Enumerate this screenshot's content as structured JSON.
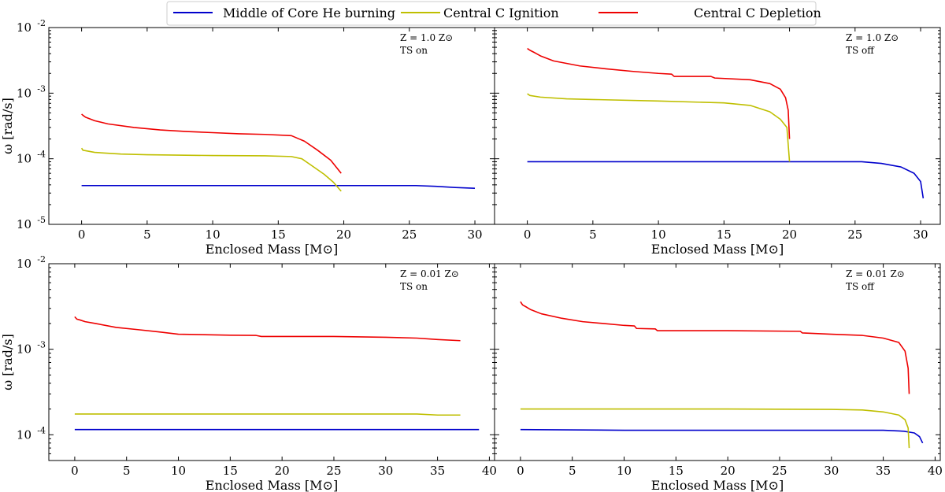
{
  "legend": {
    "entries": [
      {
        "label": "Middle of Core He burning",
        "color": "#0000cc"
      },
      {
        "label": "Central C Ignition",
        "color": "#bfbf00"
      },
      {
        "label": "Central C Depletion",
        "color": "#ee0000"
      }
    ]
  },
  "chart_data": [
    {
      "type": "line",
      "panel": "top-left",
      "xlabel": "Enclosed Mass [M⊙]",
      "ylabel": "ω [rad/s]",
      "ylog": true,
      "xlim": [
        -2.5,
        31.5
      ],
      "ylim": [
        1e-05,
        0.01
      ],
      "xticks": [
        0,
        5,
        10,
        15,
        20,
        25,
        30
      ],
      "yticks": [
        1e-05,
        0.0001,
        0.001,
        0.01
      ],
      "ytick_labels": [
        "10⁻⁵",
        "10⁻⁴",
        "10⁻³",
        "10⁻²"
      ],
      "annotation": [
        "Z = 1.0 Z⊙",
        "TS on"
      ],
      "series": [
        {
          "name": "Middle of Core He burning",
          "color": "#0000cc",
          "x": [
            0,
            5,
            10,
            15,
            20,
            25.5,
            27,
            28.5,
            30
          ],
          "y": [
            3.9e-05,
            3.9e-05,
            3.9e-05,
            3.9e-05,
            3.9e-05,
            3.9e-05,
            3.8e-05,
            3.65e-05,
            3.55e-05
          ]
        },
        {
          "name": "Central C Ignition",
          "color": "#bfbf00",
          "x": [
            0,
            0.1,
            1,
            3,
            5,
            10,
            14,
            16,
            16.8,
            17.5,
            18.5,
            19.2,
            19.8
          ],
          "y": [
            0.000145,
            0.000135,
            0.000125,
            0.000118,
            0.000115,
            0.000112,
            0.000111,
            0.000108,
            0.0001,
            8e-05,
            5.8e-05,
            4.4e-05,
            3.2e-05
          ]
        },
        {
          "name": "Central C Depletion",
          "color": "#ee0000",
          "x": [
            0,
            0.1,
            0.3,
            1,
            2,
            4,
            6,
            8,
            10,
            12,
            14,
            16,
            17,
            18,
            19,
            19.8
          ],
          "y": [
            0.00048,
            0.00046,
            0.00043,
            0.00038,
            0.00034,
            0.0003,
            0.000275,
            0.00026,
            0.00025,
            0.00024,
            0.000235,
            0.000225,
            0.000185,
            0.000135,
            9.5e-05,
            6e-05
          ]
        }
      ]
    },
    {
      "type": "line",
      "panel": "top-right",
      "xlabel": "Enclosed Mass [M⊙]",
      "ylabel": "",
      "ylog": true,
      "xlim": [
        -2.5,
        31.5
      ],
      "ylim": [
        1e-05,
        0.01
      ],
      "xticks": [
        0,
        5,
        10,
        15,
        20,
        25,
        30
      ],
      "yticks": [
        1e-05,
        0.0001,
        0.001,
        0.01
      ],
      "annotation": [
        "Z = 1.0 Z⊙",
        "TS off"
      ],
      "series": [
        {
          "name": "Middle of Core He burning",
          "color": "#0000cc",
          "x": [
            0,
            5,
            10,
            15,
            20,
            25.5,
            27,
            28.5,
            29.5,
            30,
            30.2
          ],
          "y": [
            9e-05,
            9e-05,
            9e-05,
            9e-05,
            9e-05,
            9e-05,
            8.5e-05,
            7.5e-05,
            6e-05,
            4.5e-05,
            2.5e-05
          ]
        },
        {
          "name": "Central C Ignition",
          "color": "#bfbf00",
          "x": [
            0,
            0.2,
            1,
            3,
            5,
            10,
            15,
            17,
            18.5,
            19.3,
            19.8,
            20
          ],
          "y": [
            0.00098,
            0.00092,
            0.00087,
            0.00082,
            0.0008,
            0.00076,
            0.00071,
            0.00065,
            0.00052,
            0.0004,
            0.0003,
            9e-05
          ]
        },
        {
          "name": "Central C Depletion",
          "color": "#ee0000",
          "x": [
            0,
            0.2,
            0.6,
            1,
            2,
            4,
            6,
            8,
            10,
            11,
            11.2,
            14,
            14.3,
            17,
            18.5,
            19.3,
            19.7,
            19.9,
            20
          ],
          "y": [
            0.0048,
            0.0045,
            0.0041,
            0.0037,
            0.0031,
            0.0026,
            0.00235,
            0.00215,
            0.002,
            0.00195,
            0.0018,
            0.0018,
            0.0017,
            0.0016,
            0.0014,
            0.00115,
            0.00085,
            0.00055,
            0.0002
          ]
        }
      ]
    },
    {
      "type": "line",
      "panel": "bottom-left",
      "xlabel": "Enclosed Mass [M⊙]",
      "ylabel": "ω [rad/s]",
      "ylog": true,
      "xlim": [
        -2.5,
        40.5
      ],
      "ylim": [
        5e-05,
        0.01
      ],
      "xticks": [
        0,
        5,
        10,
        15,
        20,
        25,
        30,
        35,
        40
      ],
      "yticks": [
        0.0001,
        0.001,
        0.01
      ],
      "ytick_labels": [
        "10⁻⁴",
        "10⁻³",
        "10⁻²"
      ],
      "annotation": [
        "Z = 0.01 Z⊙",
        "TS on"
      ],
      "series": [
        {
          "name": "Middle of Core He burning",
          "color": "#0000cc",
          "x": [
            0,
            10,
            20,
            30,
            39
          ],
          "y": [
            0.000115,
            0.000115,
            0.000115,
            0.000115,
            0.000115
          ]
        },
        {
          "name": "Central C Ignition",
          "color": "#bfbf00",
          "x": [
            0,
            10,
            20,
            30,
            33,
            35,
            37.2
          ],
          "y": [
            0.000175,
            0.000175,
            0.000175,
            0.000175,
            0.000175,
            0.00017,
            0.00017
          ]
        },
        {
          "name": "Central C Depletion",
          "color": "#ee0000",
          "x": [
            0,
            0.2,
            0.5,
            1,
            2,
            4,
            6,
            8,
            10,
            15,
            17.5,
            18,
            20,
            25,
            30,
            33,
            35,
            37.2
          ],
          "y": [
            0.0024,
            0.00225,
            0.0022,
            0.0021,
            0.002,
            0.0018,
            0.0017,
            0.0016,
            0.0015,
            0.00146,
            0.00145,
            0.00141,
            0.00141,
            0.00141,
            0.00138,
            0.00135,
            0.0013,
            0.00126
          ]
        }
      ]
    },
    {
      "type": "line",
      "panel": "bottom-right",
      "xlabel": "Enclosed Mass [M⊙]",
      "ylabel": "",
      "ylog": true,
      "xlim": [
        -2.5,
        40.5
      ],
      "ylim": [
        5e-05,
        0.01
      ],
      "xticks": [
        0,
        5,
        10,
        15,
        20,
        25,
        30,
        35,
        40
      ],
      "yticks": [
        0.0001,
        0.001,
        0.01
      ],
      "annotation": [
        "Z = 0.01 Z⊙",
        "TS off"
      ],
      "series": [
        {
          "name": "Middle of Core He burning",
          "color": "#0000cc",
          "x": [
            0,
            10,
            20,
            30,
            35,
            37,
            38,
            38.5,
            38.8
          ],
          "y": [
            0.000115,
            0.000113,
            0.000113,
            0.000113,
            0.000113,
            0.00011,
            0.000105,
            9.5e-05,
            8e-05
          ]
        },
        {
          "name": "Central C Ignition",
          "color": "#bfbf00",
          "x": [
            0,
            10,
            20,
            30,
            33,
            35,
            36.5,
            37.1,
            37.4,
            37.5
          ],
          "y": [
            0.0002,
            0.0002,
            0.0002,
            0.000198,
            0.000195,
            0.000185,
            0.00017,
            0.00015,
            0.00012,
            7e-05
          ]
        },
        {
          "name": "Central C Depletion",
          "color": "#ee0000",
          "x": [
            0,
            0.2,
            0.6,
            1,
            2,
            4,
            6,
            8,
            10,
            11,
            11.2,
            13,
            13.2,
            20,
            27,
            27.2,
            30,
            33,
            35,
            36.5,
            37.1,
            37.4,
            37.5
          ],
          "y": [
            0.0036,
            0.0033,
            0.0031,
            0.0029,
            0.0026,
            0.0023,
            0.0021,
            0.002,
            0.0019,
            0.00187,
            0.00175,
            0.00173,
            0.00165,
            0.00165,
            0.00162,
            0.00155,
            0.0015,
            0.00145,
            0.00135,
            0.0012,
            0.00095,
            0.0006,
            0.0003
          ]
        }
      ]
    }
  ]
}
